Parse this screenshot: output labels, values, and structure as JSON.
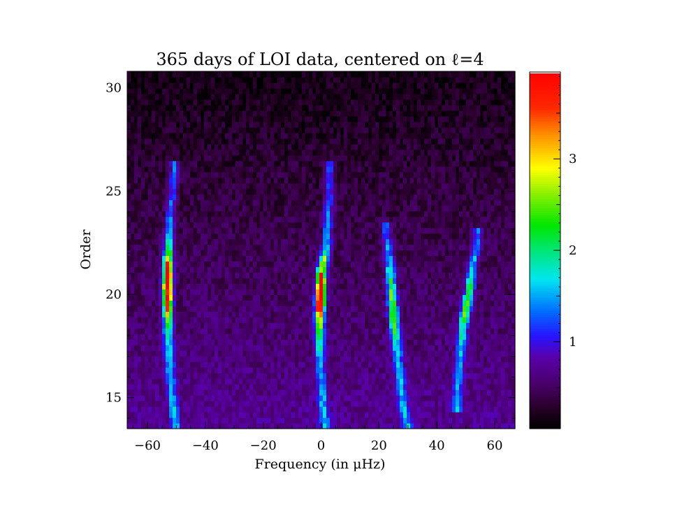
{
  "chart_data": {
    "type": "heatmap",
    "title": "365 days of LOI data, centered on ℓ=4",
    "xlabel": "Frequency (in μHz)",
    "ylabel": "Order",
    "xlim": [
      -67,
      67
    ],
    "ylim": [
      13.5,
      30.8
    ],
    "x_ticks": [
      -60,
      -40,
      -20,
      0,
      20,
      40,
      60
    ],
    "x_tick_labels": [
      "−60",
      "−40",
      "−20",
      "0",
      "20",
      "40",
      "60"
    ],
    "y_ticks": [
      15,
      20,
      25,
      30
    ],
    "y_tick_labels": [
      "15",
      "20",
      "25",
      "30"
    ],
    "colorbar": {
      "range": [
        0.05,
        3.95
      ],
      "ticks": [
        1,
        2,
        3
      ],
      "tick_labels": [
        "1",
        "2",
        "3"
      ],
      "colormap": "rainbow"
    },
    "ridges": [
      {
        "points": [
          [
            -50,
            13.5
          ],
          [
            -51.5,
            15
          ],
          [
            -52.5,
            17
          ],
          [
            -53,
            19
          ],
          [
            -53,
            21
          ],
          [
            -52.5,
            23
          ],
          [
            -51.5,
            24.8
          ],
          [
            -50.5,
            26
          ]
        ],
        "peak_order": 20.5,
        "peak_value": 3.9
      },
      {
        "points": [
          [
            1.5,
            13.5
          ],
          [
            0.5,
            15
          ],
          [
            -0.5,
            17
          ],
          [
            -0.5,
            19
          ],
          [
            0,
            21
          ],
          [
            2,
            22.5
          ],
          [
            2.5,
            24
          ],
          [
            3,
            26
          ]
        ],
        "peak_order": 20.0,
        "peak_value": 3.9
      },
      {
        "points": [
          [
            30,
            13.5
          ],
          [
            28,
            15
          ],
          [
            26.5,
            17
          ],
          [
            25,
            19
          ],
          [
            24,
            21
          ],
          [
            22.5,
            23
          ]
        ],
        "peak_order": 19.5,
        "peak_value": 2.1
      },
      {
        "points": [
          [
            47,
            15
          ],
          [
            48,
            17
          ],
          [
            49,
            18.5
          ],
          [
            51,
            20
          ],
          [
            52.5,
            21.5
          ],
          [
            54,
            22.5
          ]
        ],
        "peak_order": 19.5,
        "peak_value": 1.9
      }
    ]
  }
}
